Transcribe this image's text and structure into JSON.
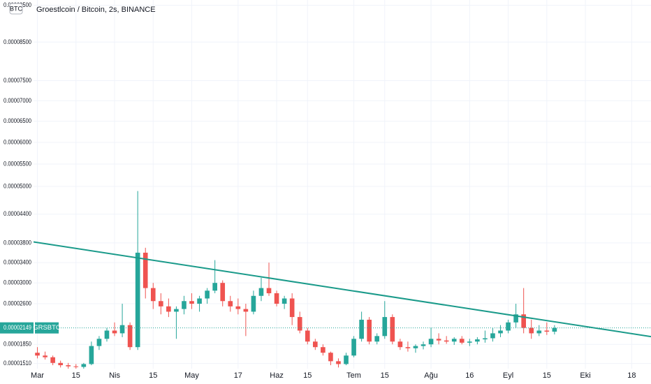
{
  "chart_data": {
    "type": "candlestick",
    "title": "Groestlcoin / Bitcoin, 2s, BINANCE",
    "y_axis_label": "BTC",
    "symbol": "GRSBTC",
    "last_price": {
      "value": 2.149e-05,
      "label": "0.00002149"
    },
    "up_color": "#26a69a",
    "down_color": "#ef5350",
    "grid": true,
    "ylim": [
      1.42e-05,
      9.65e-05
    ],
    "yticks": [
      {
        "value": 9.5e-05,
        "label": "0.00009500"
      },
      {
        "value": 8.5e-05,
        "label": "0.00008500"
      },
      {
        "value": 7.5e-05,
        "label": "0.00007500"
      },
      {
        "value": 7e-05,
        "label": "0.00007000"
      },
      {
        "value": 6.5e-05,
        "label": "0.00006500"
      },
      {
        "value": 6e-05,
        "label": "0.00006000"
      },
      {
        "value": 5.5e-05,
        "label": "0.00005500"
      },
      {
        "value": 5e-05,
        "label": "0.00005000"
      },
      {
        "value": 4.4e-05,
        "label": "0.00004400"
      },
      {
        "value": 3.8e-05,
        "label": "0.00003800"
      },
      {
        "value": 3.4e-05,
        "label": "0.00003400"
      },
      {
        "value": 3e-05,
        "label": "0.00003000"
      },
      {
        "value": 2.6e-05,
        "label": "0.00002600"
      },
      {
        "value": 1.85e-05,
        "label": "0.00001850"
      },
      {
        "value": 1.51e-05,
        "label": "0.00001510"
      }
    ],
    "categories": [
      "Mar",
      null,
      null,
      null,
      null,
      "15",
      null,
      null,
      null,
      null,
      "Nis",
      null,
      null,
      null,
      null,
      "15",
      null,
      null,
      null,
      null,
      "May",
      null,
      null,
      null,
      null,
      null,
      "17",
      null,
      null,
      null,
      null,
      "Haz",
      null,
      null,
      null,
      "15",
      null,
      null,
      null,
      null,
      null,
      "Tem",
      null,
      null,
      null,
      "15",
      null,
      null,
      null,
      null,
      null,
      "Ağu",
      null,
      null,
      null,
      null,
      "16",
      null,
      null,
      null,
      null,
      "Eyl",
      null,
      null,
      null,
      null,
      "15",
      null,
      null,
      null,
      null,
      "Eki",
      null,
      null,
      null,
      null,
      null,
      "18",
      null,
      null
    ],
    "open": [
      1.7e-05,
      1.65e-05,
      1.62e-05,
      1.52e-05,
      1.48e-05,
      1.46e-05,
      1.45e-05,
      1.5e-05,
      1.82e-05,
      1.95e-05,
      2.1e-05,
      2.05e-05,
      2.2e-05,
      1.8e-05,
      3.6e-05,
      2.9e-05,
      2.65e-05,
      2.55e-05,
      2.45e-05,
      2.5e-05,
      2.65e-05,
      2.6e-05,
      2.7e-05,
      2.85e-05,
      3e-05,
      2.65e-05,
      2.55e-05,
      2.5e-05,
      2.45e-05,
      2.75e-05,
      2.9e-05,
      2.8e-05,
      2.6e-05,
      2.7e-05,
      2.35e-05,
      2.1e-05,
      1.9e-05,
      1.8e-05,
      1.7e-05,
      1.55e-05,
      1.5e-05,
      1.65e-05,
      1.95e-05,
      2.3e-05,
      1.9e-05,
      2e-05,
      2.35e-05,
      1.9e-05,
      1.8e-05,
      1.78e-05,
      1.82e-05,
      1.85e-05,
      1.95e-05,
      1.92e-05,
      1.9e-05,
      1.95e-05,
      1.88e-05,
      1.9e-05,
      1.94e-05,
      1.96e-05,
      2.05e-05,
      2.1e-05,
      2.25e-05,
      2.4e-05,
      2.15e-05,
      2.05e-05,
      2.1e-05,
      2.08e-05,
      null,
      null,
      null,
      null,
      null,
      null,
      null,
      null,
      null,
      null,
      null,
      null
    ],
    "high": [
      1.8e-05,
      1.72e-05,
      1.65e-05,
      1.56e-05,
      1.52e-05,
      1.5e-05,
      1.52e-05,
      1.9e-05,
      2e-05,
      2.15e-05,
      2.25e-05,
      2.6e-05,
      2.25e-05,
      4.9e-05,
      3.7e-05,
      3e-05,
      2.8e-05,
      2.7e-05,
      2.55e-05,
      2.75e-05,
      2.8e-05,
      2.75e-05,
      2.9e-05,
      3.45e-05,
      3.05e-05,
      2.75e-05,
      2.7e-05,
      2.6e-05,
      2.85e-05,
      3.1e-05,
      3.4e-05,
      2.85e-05,
      2.75e-05,
      2.8e-05,
      2.45e-05,
      2.15e-05,
      1.95e-05,
      1.85e-05,
      1.72e-05,
      1.6e-05,
      1.7e-05,
      2e-05,
      2.45e-05,
      2.35e-05,
      2.05e-05,
      2.65e-05,
      2.4e-05,
      1.95e-05,
      1.9e-05,
      1.85e-05,
      1.9e-05,
      2.15e-05,
      2.05e-05,
      2e-05,
      1.98e-05,
      2e-05,
      1.95e-05,
      1.98e-05,
      2.1e-05,
      2.15e-05,
      2.2e-05,
      2.3e-05,
      2.6e-05,
      2.9e-05,
      2.3e-05,
      2.2e-05,
      2.25e-05,
      2.2e-05,
      null,
      null,
      null,
      null,
      null,
      null,
      null,
      null,
      null,
      null,
      null,
      null
    ],
    "low": [
      1.6e-05,
      1.58e-05,
      1.48e-05,
      1.44e-05,
      1.42e-05,
      1.4e-05,
      1.42e-05,
      1.48e-05,
      1.75e-05,
      1.9e-05,
      2e-05,
      1.98e-05,
      1.75e-05,
      1.75e-05,
      2.7e-05,
      2.5e-05,
      2.4e-05,
      2.35e-05,
      1.95e-05,
      2.4e-05,
      2.5e-05,
      2.45e-05,
      2.6e-05,
      2.8e-05,
      2.55e-05,
      2.45e-05,
      2.4e-05,
      2e-05,
      2.4e-05,
      2.65e-05,
      2.75e-05,
      2.55e-05,
      2.5e-05,
      2.2e-05,
      2.05e-05,
      1.85e-05,
      1.75e-05,
      1.65e-05,
      1.48e-05,
      1.44e-05,
      1.48e-05,
      1.62e-05,
      1.9e-05,
      1.85e-05,
      1.85e-05,
      1.95e-05,
      1.85e-05,
      1.75e-05,
      1.72e-05,
      1.7e-05,
      1.76e-05,
      1.8e-05,
      1.85e-05,
      1.86e-05,
      1.84e-05,
      1.85e-05,
      1.82e-05,
      1.85e-05,
      1.88e-05,
      1.9e-05,
      1.98e-05,
      2.05e-05,
      2.15e-05,
      2.05e-05,
      1.95e-05,
      2e-05,
      2.02e-05,
      2.03e-05,
      null,
      null,
      null,
      null,
      null,
      null,
      null,
      null,
      null,
      null,
      null,
      null
    ],
    "close": [
      1.65e-05,
      1.62e-05,
      1.52e-05,
      1.48e-05,
      1.46e-05,
      1.45e-05,
      1.5e-05,
      1.82e-05,
      1.95e-05,
      2.1e-05,
      2.05e-05,
      2.2e-05,
      1.8e-05,
      3.6e-05,
      2.9e-05,
      2.65e-05,
      2.55e-05,
      2.45e-05,
      2.5e-05,
      2.65e-05,
      2.6e-05,
      2.7e-05,
      2.85e-05,
      3e-05,
      2.65e-05,
      2.55e-05,
      2.5e-05,
      2.45e-05,
      2.75e-05,
      2.9e-05,
      2.8e-05,
      2.6e-05,
      2.7e-05,
      2.35e-05,
      2.1e-05,
      1.9e-05,
      1.8e-05,
      1.7e-05,
      1.55e-05,
      1.5e-05,
      1.65e-05,
      1.95e-05,
      2.3e-05,
      1.9e-05,
      2e-05,
      2.35e-05,
      1.9e-05,
      1.8e-05,
      1.78e-05,
      1.82e-05,
      1.85e-05,
      1.95e-05,
      1.92e-05,
      1.9e-05,
      1.95e-05,
      1.88e-05,
      1.9e-05,
      1.94e-05,
      1.96e-05,
      2.05e-05,
      2.1e-05,
      2.25e-05,
      2.4e-05,
      2.15e-05,
      2.05e-05,
      2.1e-05,
      2.08e-05,
      2.149e-05,
      null,
      null,
      null,
      null,
      null,
      null,
      null,
      null,
      null,
      null,
      null,
      null
    ],
    "trendline": {
      "color": "#1a9a8a",
      "values": [
        3.82e-05,
        1.99e-05
      ]
    }
  }
}
